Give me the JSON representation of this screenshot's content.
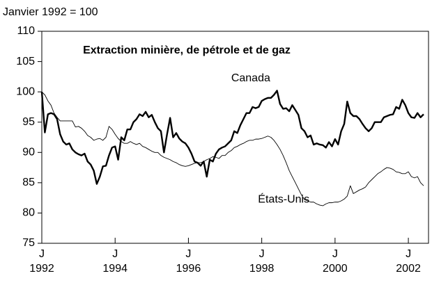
{
  "chart_data": {
    "type": "line",
    "title": "Extraction minière, de pétrole et de gaz",
    "ylabel": "Janvier 1992 = 100",
    "annotations": [
      {
        "text": "Canada",
        "x": 1997.7,
        "y": 102.2
      },
      {
        "text": "États-Unis",
        "x": 1998.6,
        "y": 82.2
      }
    ],
    "x": [
      1992,
      1992.083,
      1992.167,
      1992.25,
      1992.333,
      1992.417,
      1992.5,
      1992.583,
      1992.667,
      1992.75,
      1992.833,
      1992.917,
      1993,
      1993.083,
      1993.167,
      1993.25,
      1993.333,
      1993.417,
      1993.5,
      1993.583,
      1993.667,
      1993.75,
      1993.833,
      1993.917,
      1994,
      1994.083,
      1994.167,
      1994.25,
      1994.333,
      1994.417,
      1994.5,
      1994.583,
      1994.667,
      1994.75,
      1994.833,
      1994.917,
      1995,
      1995.083,
      1995.167,
      1995.25,
      1995.333,
      1995.417,
      1995.5,
      1995.583,
      1995.667,
      1995.75,
      1995.833,
      1995.917,
      1996,
      1996.083,
      1996.167,
      1996.25,
      1996.333,
      1996.417,
      1996.5,
      1996.583,
      1996.667,
      1996.75,
      1996.833,
      1996.917,
      1997,
      1997.083,
      1997.167,
      1997.25,
      1997.333,
      1997.417,
      1997.5,
      1997.583,
      1997.667,
      1997.75,
      1997.833,
      1997.917,
      1998,
      1998.083,
      1998.167,
      1998.25,
      1998.333,
      1998.417,
      1998.5,
      1998.583,
      1998.667,
      1998.75,
      1998.833,
      1998.917,
      1999,
      1999.083,
      1999.167,
      1999.25,
      1999.333,
      1999.417,
      1999.5,
      1999.583,
      1999.667,
      1999.75,
      1999.833,
      1999.917,
      2000,
      2000.083,
      2000.167,
      2000.25,
      2000.333,
      2000.417,
      2000.5,
      2000.583,
      2000.667,
      2000.75,
      2000.833,
      2000.917,
      2001,
      2001.083,
      2001.167,
      2001.25,
      2001.333,
      2001.417,
      2001.5,
      2001.583,
      2001.667,
      2001.75,
      2001.833,
      2001.917,
      2002,
      2002.083,
      2002.167,
      2002.25,
      2002.333,
      2002.417
    ],
    "series": [
      {
        "name": "Canada",
        "color": "#000000",
        "width": 2.4,
        "values": [
          100,
          93.3,
          96.3,
          96.5,
          96.3,
          95.5,
          93,
          91.8,
          91.3,
          91.5,
          90.5,
          90,
          89.7,
          89.5,
          89.8,
          88.5,
          88,
          87,
          84.8,
          86,
          87.7,
          87.8,
          89.5,
          90.8,
          91,
          88.8,
          92.5,
          92,
          93.8,
          93.8,
          95,
          95.5,
          96.3,
          96,
          96.7,
          95.8,
          96.2,
          95,
          94,
          93.5,
          90,
          93,
          95.7,
          92.5,
          93.2,
          92.3,
          91.8,
          91.5,
          90.8,
          89.8,
          88.5,
          88.3,
          87.8,
          88.5,
          86,
          88.8,
          88.5,
          89.8,
          90.5,
          90.8,
          91,
          91.5,
          92,
          93.5,
          93.2,
          94.5,
          95.5,
          96.5,
          96.5,
          97.5,
          97.3,
          97.5,
          98.5,
          98.8,
          99,
          99,
          99.5,
          100.2,
          98,
          97.2,
          97.3,
          96.8,
          97.8,
          97,
          96.2,
          94,
          93.5,
          92.5,
          92.8,
          91.3,
          91.5,
          91.3,
          91.2,
          90.8,
          91.7,
          91,
          92.2,
          91.3,
          93.5,
          94.7,
          98.4,
          96.5,
          96,
          96,
          95.5,
          94.7,
          94,
          93.5,
          94,
          95,
          95,
          95,
          95.8,
          96,
          96.2,
          96.3,
          97.5,
          97.2,
          98.7,
          97.8,
          96.5,
          95.8,
          95.7,
          96.5,
          95.8,
          96.3
        ]
      },
      {
        "name": "États-Unis",
        "color": "#000000",
        "width": 0.9,
        "values": [
          100,
          99.5,
          98.5,
          97.8,
          96.5,
          95.8,
          95.2,
          95.2,
          95.2,
          95.2,
          95.2,
          94.2,
          94.3,
          94,
          93.5,
          92.8,
          92.5,
          92,
          92.2,
          92.3,
          92,
          92.5,
          94.3,
          93.8,
          93,
          92.3,
          91.8,
          91.5,
          91.5,
          91.8,
          91.5,
          91.3,
          91.5,
          91,
          90.8,
          90.5,
          90.2,
          90,
          90,
          89.5,
          89.2,
          89,
          88.8,
          88.5,
          88.3,
          88,
          87.8,
          87.7,
          87.8,
          88,
          88.2,
          88.3,
          88.3,
          88.5,
          88.8,
          89,
          89.3,
          89.2,
          89,
          89.5,
          89.5,
          90,
          90.3,
          90.8,
          91,
          91.3,
          91.5,
          91.8,
          92,
          92,
          92.2,
          92.2,
          92.3,
          92.5,
          92.7,
          92.5,
          92,
          91.3,
          90.5,
          89.5,
          88.3,
          87,
          86,
          85,
          84,
          83,
          82.2,
          82,
          81.8,
          81.8,
          81.5,
          81.3,
          81.2,
          81.5,
          81.7,
          81.7,
          81.8,
          81.8,
          82,
          82.3,
          82.8,
          84.5,
          83.2,
          83.5,
          83.8,
          84,
          84.3,
          85,
          85.5,
          86,
          86.5,
          86.8,
          87.2,
          87.5,
          87.4,
          87.2,
          86.8,
          86.7,
          86.5,
          86.5,
          86.8,
          86,
          85.8,
          86,
          85,
          84.5
        ]
      }
    ],
    "xlim": [
      1992,
      2002.55
    ],
    "xticks": [
      {
        "value": 1992,
        "label": "1992",
        "month": "J"
      },
      {
        "value": 1994,
        "label": "1994",
        "month": "J"
      },
      {
        "value": 1996,
        "label": "1996",
        "month": "J"
      },
      {
        "value": 1998,
        "label": "1998",
        "month": "J"
      },
      {
        "value": 2000,
        "label": "2000",
        "month": "J"
      },
      {
        "value": 2002,
        "label": "2002",
        "month": "J"
      }
    ],
    "ylim": [
      75,
      110
    ],
    "yticks": [
      75,
      80,
      85,
      90,
      95,
      100,
      105,
      110
    ]
  }
}
